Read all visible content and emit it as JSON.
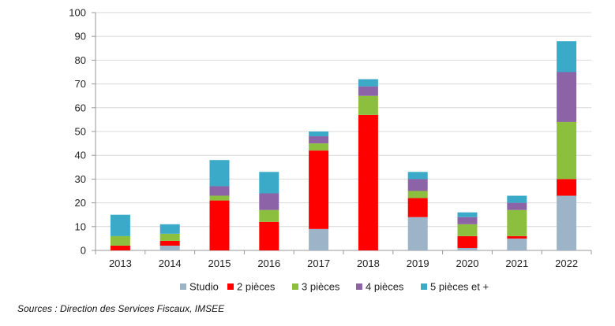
{
  "chart_data": {
    "type": "bar",
    "stacked": true,
    "categories": [
      "2013",
      "2014",
      "2015",
      "2016",
      "2017",
      "2018",
      "2019",
      "2020",
      "2021",
      "2022"
    ],
    "series": [
      {
        "name": "Studio",
        "color": "#9db4c8",
        "values": [
          0,
          2,
          0,
          0,
          9,
          0,
          14,
          1,
          5,
          23
        ]
      },
      {
        "name": "2 pièces",
        "color": "#ff0000",
        "values": [
          2,
          2,
          21,
          12,
          33,
          57,
          8,
          5,
          1,
          7
        ]
      },
      {
        "name": "3 pièces",
        "color": "#8dbf3f",
        "values": [
          4,
          3,
          2,
          5,
          3,
          8,
          3,
          5,
          11,
          24
        ]
      },
      {
        "name": "4 pièces",
        "color": "#8b63a6",
        "values": [
          0,
          0,
          4,
          7,
          3,
          4,
          5,
          3,
          3,
          21
        ]
      },
      {
        "name": "5 pièces et +",
        "color": "#3aaac8",
        "values": [
          9,
          4,
          11,
          9,
          2,
          3,
          3,
          2,
          3,
          13
        ]
      }
    ],
    "yticks": [
      0,
      10,
      20,
      30,
      40,
      50,
      60,
      70,
      80,
      90,
      100
    ],
    "ylim": [
      0,
      100
    ],
    "title": "",
    "xlabel": "",
    "ylabel": "",
    "grid": true,
    "legend_position": "bottom"
  },
  "source": "Sources : Direction des Services Fiscaux, IMSEE"
}
